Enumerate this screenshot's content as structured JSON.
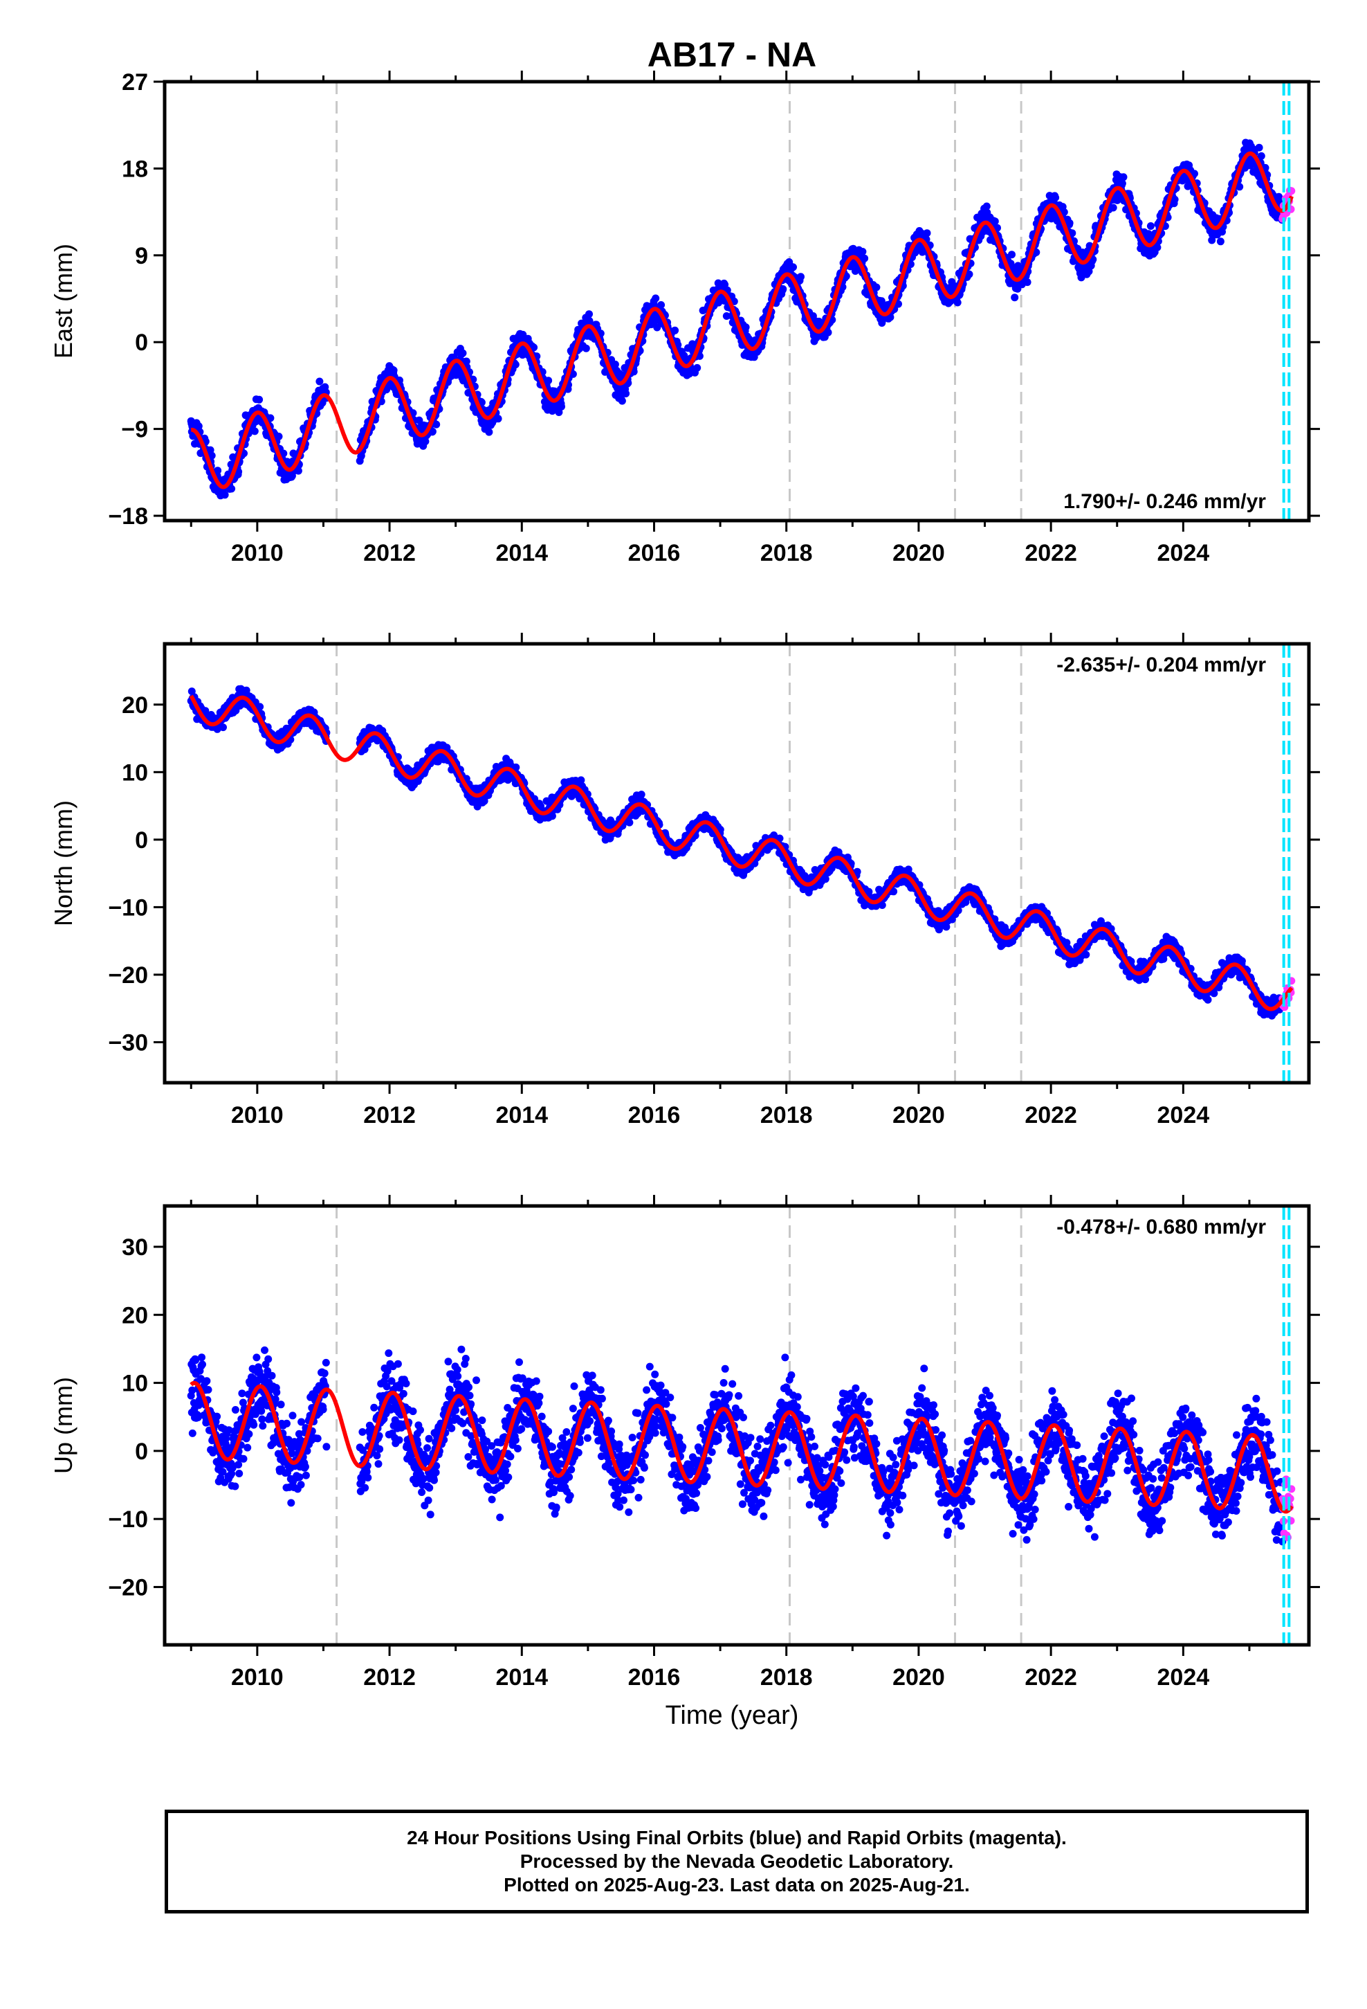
{
  "figure": {
    "title": "AB17 - NA",
    "xlabel": "Time (year)"
  },
  "colors": {
    "final_orbits": "#0000ff",
    "rapid_orbits": "#ff33ff",
    "model_fit": "#ff0000",
    "step_lines": "#c8c8c8",
    "recent_lines": "#00e5ff"
  },
  "chart_data": [
    {
      "type": "scatter",
      "name": "east",
      "ylabel": "East (mm)",
      "ylim": [
        -18.5,
        27
      ],
      "xlim": [
        2008.6,
        2025.9
      ],
      "y_ticks": [
        -18,
        -9,
        0,
        9,
        18,
        27
      ],
      "x_ticks": [
        2010,
        2012,
        2014,
        2016,
        2018,
        2020,
        2022,
        2024
      ],
      "x_tick_labels_shown": true,
      "rate_label": "1.790+/- 0.246 mm/yr",
      "rate_label_position": "bottom-right",
      "start_year": 2009.0,
      "end_year": 2025.64,
      "rate": 1.79,
      "offset": -12.5,
      "annual_amplitude": 3.4,
      "annual_phase_year": 2009.75,
      "scatter_sd": 1.3,
      "gap": [
        2011.05,
        2011.55
      ],
      "steps": [
        {
          "year": 2021.0,
          "value": 3.5
        }
      ],
      "grid": false
    },
    {
      "type": "scatter",
      "name": "north",
      "ylabel": "North (mm)",
      "ylim": [
        -36,
        29
      ],
      "xlim": [
        2008.6,
        2025.9
      ],
      "y_ticks": [
        -30,
        -20,
        -10,
        0,
        10,
        20
      ],
      "x_ticks": [
        2010,
        2012,
        2014,
        2016,
        2018,
        2020,
        2022,
        2024
      ],
      "x_tick_labels_shown": true,
      "rate_label": "-2.635+/- 0.204 mm/yr",
      "rate_label_position": "top-right",
      "start_year": 2009.0,
      "end_year": 2025.64,
      "rate": -2.635,
      "offset": 20.5,
      "annual_amplitude": 2.6,
      "annual_phase_year": 2009.55,
      "scatter_sd": 1.2,
      "gap": [
        2011.05,
        2011.55
      ],
      "steps": [
        {
          "year": 2021.75,
          "value": -9.0
        }
      ],
      "grid": false
    },
    {
      "type": "scatter",
      "name": "up",
      "ylabel": "Up (mm)",
      "ylim": [
        -28.5,
        36
      ],
      "xlim": [
        2008.6,
        2025.9
      ],
      "y_ticks": [
        -20,
        -10,
        0,
        10,
        20,
        30
      ],
      "x_ticks": [
        2010,
        2012,
        2014,
        2016,
        2018,
        2020,
        2022,
        2024
      ],
      "x_tick_labels_shown": true,
      "rate_label": "-0.478+/- 0.680 mm/yr",
      "rate_label_position": "top-right",
      "start_year": 2009.0,
      "end_year": 2025.64,
      "rate": -0.478,
      "offset": 4.5,
      "annual_amplitude": 5.5,
      "annual_phase_year": 2009.8,
      "scatter_sd": 5.0,
      "gap": [
        2011.05,
        2011.55
      ],
      "steps": [],
      "grid": false
    }
  ],
  "event_lines": {
    "gray_years": [
      2011.2,
      2018.05,
      2020.55,
      2021.55
    ],
    "cyan_years": [
      2025.52,
      2025.6
    ]
  },
  "rapid_segment": {
    "start_year": 2025.5,
    "end_year": 2025.64
  },
  "footer": {
    "line1": "24 Hour Positions Using Final Orbits (blue) and Rapid Orbits (magenta).",
    "line2": "Processed by the Nevada Geodetic Laboratory.",
    "line3": "Plotted on 2025-Aug-23. Last data on 2025-Aug-21."
  }
}
